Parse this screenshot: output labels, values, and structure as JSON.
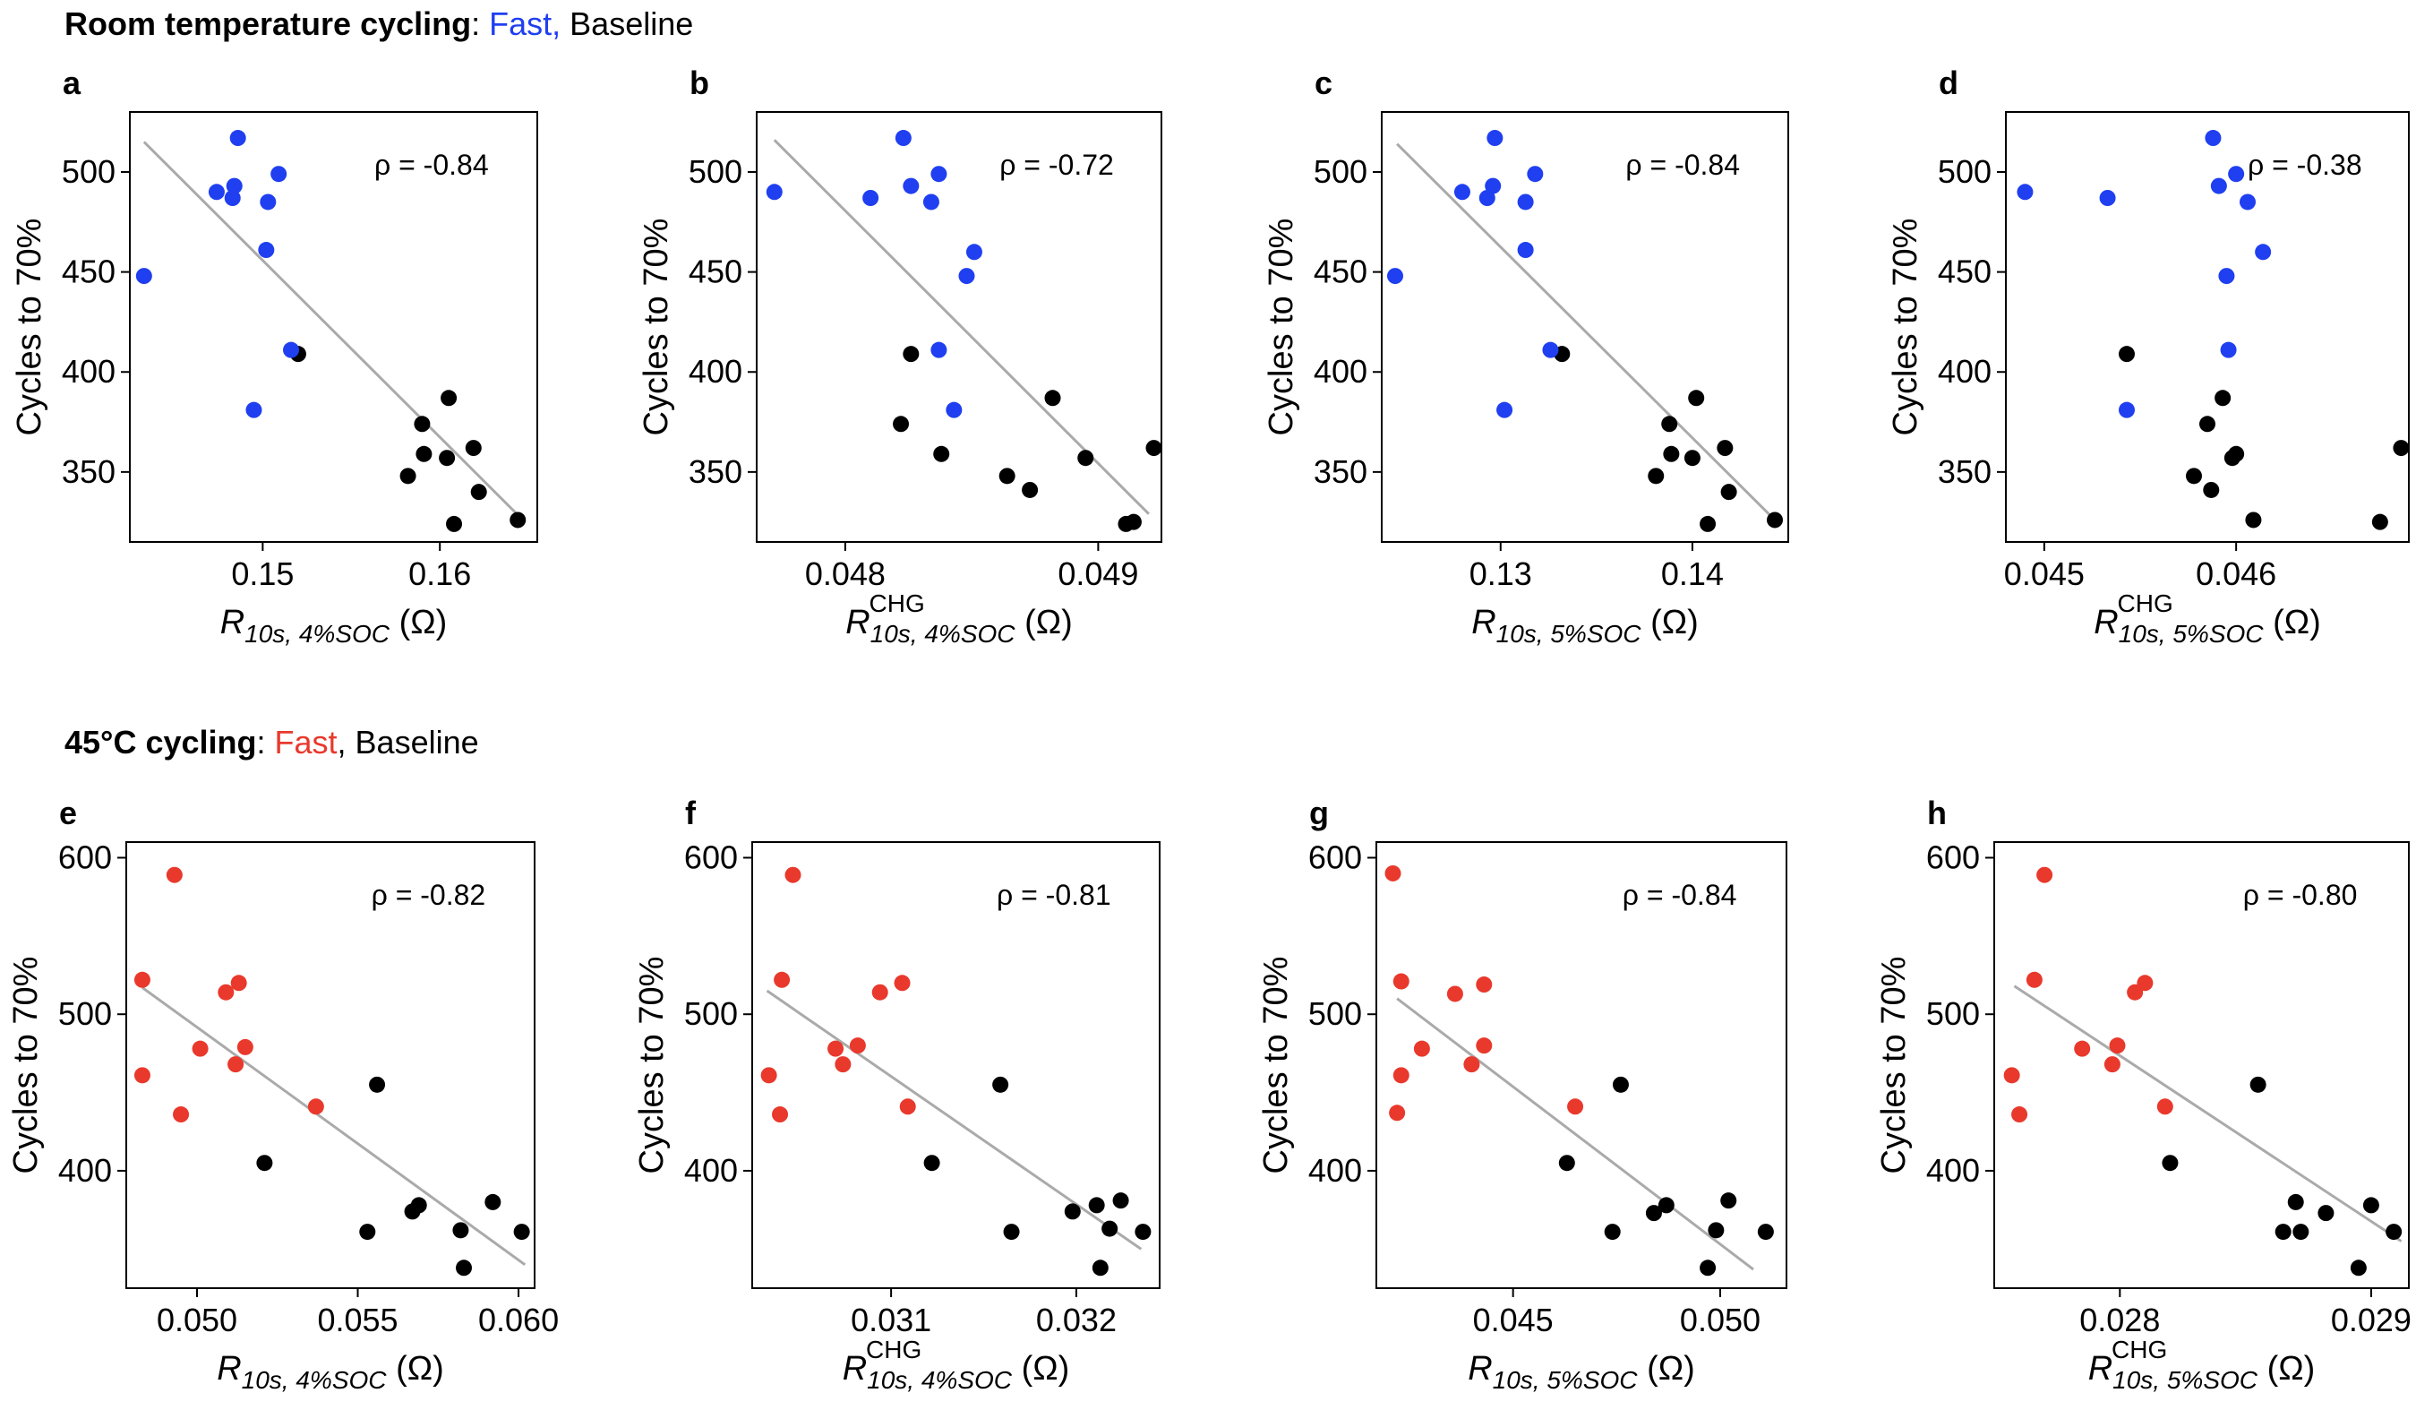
{
  "rows": [
    {
      "title_bold": "Room temperature cycling",
      "title_sep": ": ",
      "fast_label": "Fast,",
      "baseline_label": " Baseline",
      "fast_color": "#1f3ff0"
    },
    {
      "title_bold": "45°C cycling",
      "title_sep": ": ",
      "fast_label": "Fast",
      "baseline_label": ", Baseline",
      "fast_color": "#e8392c"
    }
  ],
  "colors": {
    "baseline": "#000000",
    "fit_line": "#aaaaaa"
  },
  "chart_data": [
    {
      "panel": "a",
      "type": "scatter",
      "row": 0,
      "ylabel": "Cycles to 70%",
      "xlabel": {
        "main": "R",
        "sub": "10s, 4%SOC",
        "sup": "",
        "unit": " (Ω)"
      },
      "rho": "ρ = -0.84",
      "xlim": [
        0.1425,
        0.1655
      ],
      "ylim": [
        315,
        530
      ],
      "xticks": [
        0.15,
        0.16
      ],
      "xtick_labels": [
        "0.15",
        "0.16"
      ],
      "yticks": [
        350,
        400,
        450,
        500
      ],
      "ytick_labels": [
        "350",
        "400",
        "450",
        "500"
      ],
      "fit": [
        [
          0.1433,
          515
        ],
        [
          0.1648,
          325
        ]
      ],
      "fast": [
        [
          0.1433,
          448
        ],
        [
          0.1474,
          490
        ],
        [
          0.1483,
          487
        ],
        [
          0.1484,
          493
        ],
        [
          0.1486,
          517
        ],
        [
          0.1502,
          461
        ],
        [
          0.1503,
          485
        ],
        [
          0.1509,
          499
        ],
        [
          0.1516,
          411
        ],
        [
          0.1495,
          381
        ]
      ],
      "baseline": [
        [
          0.152,
          409
        ],
        [
          0.1582,
          348
        ],
        [
          0.159,
          374
        ],
        [
          0.1591,
          359
        ],
        [
          0.1604,
          357
        ],
        [
          0.1605,
          387
        ],
        [
          0.1608,
          324
        ],
        [
          0.1619,
          362
        ],
        [
          0.1622,
          340
        ],
        [
          0.1644,
          326
        ]
      ]
    },
    {
      "panel": "b",
      "type": "scatter",
      "row": 0,
      "ylabel": "Cycles to 70%",
      "xlabel": {
        "main": "R",
        "sub": "10s, 4%SOC",
        "sup": "CHG",
        "unit": " (Ω)"
      },
      "rho": "ρ = -0.72",
      "xlim": [
        0.04765,
        0.04925
      ],
      "ylim": [
        315,
        530
      ],
      "xticks": [
        0.048,
        0.049
      ],
      "xtick_labels": [
        "0.048",
        "0.049"
      ],
      "yticks": [
        350,
        400,
        450,
        500
      ],
      "ytick_labels": [
        "350",
        "400",
        "450",
        "500"
      ],
      "fit": [
        [
          0.04772,
          516
        ],
        [
          0.0492,
          329
        ]
      ],
      "fast": [
        [
          0.04772,
          490
        ],
        [
          0.0481,
          487
        ],
        [
          0.04823,
          517
        ],
        [
          0.04826,
          493
        ],
        [
          0.04834,
          485
        ],
        [
          0.04837,
          499
        ],
        [
          0.04837,
          411
        ],
        [
          0.04843,
          381
        ],
        [
          0.04848,
          448
        ],
        [
          0.04851,
          460
        ]
      ],
      "baseline": [
        [
          0.04822,
          374
        ],
        [
          0.04826,
          409
        ],
        [
          0.04838,
          359
        ],
        [
          0.04864,
          348
        ],
        [
          0.04873,
          341
        ],
        [
          0.04882,
          387
        ],
        [
          0.04895,
          357
        ],
        [
          0.04911,
          324
        ],
        [
          0.04914,
          325
        ],
        [
          0.04922,
          362
        ]
      ]
    },
    {
      "panel": "c",
      "type": "scatter",
      "row": 0,
      "ylabel": "Cycles to 70%",
      "xlabel": {
        "main": "R",
        "sub": "10s, 5%SOC",
        "sup": "",
        "unit": " (Ω)"
      },
      "rho": "ρ = -0.84",
      "xlim": [
        0.1238,
        0.145
      ],
      "ylim": [
        315,
        530
      ],
      "xticks": [
        0.13,
        0.14
      ],
      "xtick_labels": [
        "0.13",
        "0.14"
      ],
      "yticks": [
        350,
        400,
        450,
        500
      ],
      "ytick_labels": [
        "350",
        "400",
        "450",
        "500"
      ],
      "fit": [
        [
          0.1246,
          514
        ],
        [
          0.1443,
          326
        ]
      ],
      "fast": [
        [
          0.1245,
          448
        ],
        [
          0.128,
          490
        ],
        [
          0.1293,
          487
        ],
        [
          0.1296,
          493
        ],
        [
          0.1297,
          517
        ],
        [
          0.1302,
          381
        ],
        [
          0.1313,
          485
        ],
        [
          0.1313,
          461
        ],
        [
          0.1318,
          499
        ],
        [
          0.1326,
          411
        ]
      ],
      "baseline": [
        [
          0.1332,
          409
        ],
        [
          0.1381,
          348
        ],
        [
          0.1388,
          374
        ],
        [
          0.1389,
          359
        ],
        [
          0.14,
          357
        ],
        [
          0.1402,
          387
        ],
        [
          0.1408,
          324
        ],
        [
          0.1417,
          362
        ],
        [
          0.1419,
          340
        ],
        [
          0.1443,
          326
        ]
      ]
    },
    {
      "panel": "d",
      "type": "scatter",
      "row": 0,
      "ylabel": "Cycles to 70%",
      "xlabel": {
        "main": "R",
        "sub": "10s, 5%SOC",
        "sup": "CHG",
        "unit": " (Ω)"
      },
      "rho": "ρ = -0.38",
      "xlim": [
        0.0448,
        0.0469
      ],
      "ylim": [
        315,
        530
      ],
      "xticks": [
        0.045,
        0.046
      ],
      "xtick_labels": [
        "0.045",
        "0.046"
      ],
      "yticks": [
        350,
        400,
        450,
        500
      ],
      "ytick_labels": [
        "350",
        "400",
        "450",
        "500"
      ],
      "fit": [],
      "fast": [
        [
          0.0449,
          490
        ],
        [
          0.04533,
          487
        ],
        [
          0.04588,
          517
        ],
        [
          0.04591,
          493
        ],
        [
          0.04595,
          448
        ],
        [
          0.04596,
          411
        ],
        [
          0.046,
          499
        ],
        [
          0.04606,
          485
        ],
        [
          0.04614,
          460
        ],
        [
          0.04543,
          381
        ]
      ],
      "baseline": [
        [
          0.04543,
          409
        ],
        [
          0.04578,
          348
        ],
        [
          0.04585,
          374
        ],
        [
          0.04587,
          341
        ],
        [
          0.04593,
          387
        ],
        [
          0.04598,
          357
        ],
        [
          0.046,
          359
        ],
        [
          0.04609,
          326
        ],
        [
          0.04675,
          325
        ],
        [
          0.04686,
          362
        ]
      ]
    },
    {
      "panel": "e",
      "type": "scatter",
      "row": 1,
      "ylabel": "Cycles to 70%",
      "xlabel": {
        "main": "R",
        "sub": "10s, 4%SOC",
        "sup": "",
        "unit": " (Ω)"
      },
      "rho": "ρ = -0.82",
      "xlim": [
        0.0478,
        0.0605
      ],
      "ylim": [
        325,
        610
      ],
      "xticks": [
        0.05,
        0.055,
        0.06
      ],
      "xtick_labels": [
        "0.050",
        "0.055",
        "0.060"
      ],
      "yticks": [
        400,
        500,
        600
      ],
      "ytick_labels": [
        "400",
        "500",
        "600"
      ],
      "fit": [
        [
          0.0483,
          517
        ],
        [
          0.0602,
          340
        ]
      ],
      "fast": [
        [
          0.0483,
          522
        ],
        [
          0.0483,
          461
        ],
        [
          0.0493,
          589
        ],
        [
          0.0495,
          436
        ],
        [
          0.0501,
          478
        ],
        [
          0.0509,
          514
        ],
        [
          0.0512,
          468
        ],
        [
          0.0513,
          520
        ],
        [
          0.0515,
          479
        ],
        [
          0.0537,
          441
        ]
      ],
      "baseline": [
        [
          0.0521,
          405
        ],
        [
          0.0553,
          361
        ],
        [
          0.0556,
          455
        ],
        [
          0.0567,
          374
        ],
        [
          0.0569,
          378
        ],
        [
          0.0582,
          362
        ],
        [
          0.0583,
          338
        ],
        [
          0.0592,
          380
        ],
        [
          0.0601,
          361
        ]
      ]
    },
    {
      "panel": "f",
      "type": "scatter",
      "row": 1,
      "ylabel": "Cycles to 70%",
      "xlabel": {
        "main": "R",
        "sub": "10s, 4%SOC",
        "sup": "CHG",
        "unit": " (Ω)"
      },
      "rho": "ρ = -0.81",
      "xlim": [
        0.03025,
        0.03245
      ],
      "ylim": [
        325,
        610
      ],
      "xticks": [
        0.031,
        0.032
      ],
      "xtick_labels": [
        "0.031",
        "0.032"
      ],
      "yticks": [
        400,
        500,
        600
      ],
      "ytick_labels": [
        "400",
        "500",
        "600"
      ],
      "fit": [
        [
          0.03033,
          515
        ],
        [
          0.03235,
          350
        ]
      ],
      "fast": [
        [
          0.03034,
          461
        ],
        [
          0.0304,
          436
        ],
        [
          0.03041,
          522
        ],
        [
          0.03047,
          589
        ],
        [
          0.0307,
          478
        ],
        [
          0.03074,
          468
        ],
        [
          0.03082,
          480
        ],
        [
          0.03094,
          514
        ],
        [
          0.03106,
          520
        ],
        [
          0.03109,
          441
        ]
      ],
      "baseline": [
        [
          0.03122,
          405
        ],
        [
          0.03159,
          455
        ],
        [
          0.03165,
          361
        ],
        [
          0.03198,
          374
        ],
        [
          0.03211,
          378
        ],
        [
          0.03213,
          338
        ],
        [
          0.03218,
          363
        ],
        [
          0.03224,
          381
        ],
        [
          0.03236,
          361
        ]
      ]
    },
    {
      "panel": "g",
      "type": "scatter",
      "row": 1,
      "ylabel": "Cycles to 70%",
      "xlabel": {
        "main": "R",
        "sub": "10s, 5%SOC",
        "sup": "",
        "unit": " (Ω)"
      },
      "rho": "ρ = -0.84",
      "xlim": [
        0.0417,
        0.0516
      ],
      "ylim": [
        325,
        610
      ],
      "xticks": [
        0.045,
        0.05
      ],
      "xtick_labels": [
        "0.045",
        "0.050"
      ],
      "yticks": [
        400,
        500,
        600
      ],
      "ytick_labels": [
        "400",
        "500",
        "600"
      ],
      "fit": [
        [
          0.0422,
          510
        ],
        [
          0.0508,
          337
        ]
      ],
      "fast": [
        [
          0.0421,
          590
        ],
        [
          0.0422,
          437
        ],
        [
          0.0423,
          521
        ],
        [
          0.0423,
          461
        ],
        [
          0.0428,
          478
        ],
        [
          0.0436,
          513
        ],
        [
          0.044,
          468
        ],
        [
          0.0443,
          519
        ],
        [
          0.0443,
          480
        ],
        [
          0.0465,
          441
        ]
      ],
      "baseline": [
        [
          0.0463,
          405
        ],
        [
          0.0474,
          361
        ],
        [
          0.0476,
          455
        ],
        [
          0.0484,
          373
        ],
        [
          0.0487,
          378
        ],
        [
          0.0497,
          338
        ],
        [
          0.0499,
          362
        ],
        [
          0.0502,
          381
        ],
        [
          0.0511,
          361
        ]
      ]
    },
    {
      "panel": "h",
      "type": "scatter",
      "row": 1,
      "ylabel": "Cycles to 70%",
      "xlabel": {
        "main": "R",
        "sub": "10s, 5%SOC",
        "sup": "CHG",
        "unit": " (Ω)"
      },
      "rho": "ρ = -0.80",
      "xlim": [
        0.0275,
        0.02915
      ],
      "ylim": [
        325,
        610
      ],
      "xticks": [
        0.028,
        0.029
      ],
      "xtick_labels": [
        "0.028",
        "0.029"
      ],
      "yticks": [
        400,
        500,
        600
      ],
      "ytick_labels": [
        "400",
        "500",
        "600"
      ],
      "fit": [
        [
          0.02758,
          518
        ],
        [
          0.02912,
          355
        ]
      ],
      "fast": [
        [
          0.02757,
          461
        ],
        [
          0.0276,
          436
        ],
        [
          0.02766,
          522
        ],
        [
          0.0277,
          589
        ],
        [
          0.02785,
          478
        ],
        [
          0.02797,
          468
        ],
        [
          0.02799,
          480
        ],
        [
          0.02806,
          514
        ],
        [
          0.0281,
          520
        ],
        [
          0.02818,
          441
        ]
      ],
      "baseline": [
        [
          0.0282,
          405
        ],
        [
          0.02855,
          455
        ],
        [
          0.02865,
          361
        ],
        [
          0.0287,
          380
        ],
        [
          0.02872,
          361
        ],
        [
          0.02882,
          373
        ],
        [
          0.02895,
          338
        ],
        [
          0.029,
          378
        ],
        [
          0.02909,
          361
        ]
      ]
    }
  ]
}
